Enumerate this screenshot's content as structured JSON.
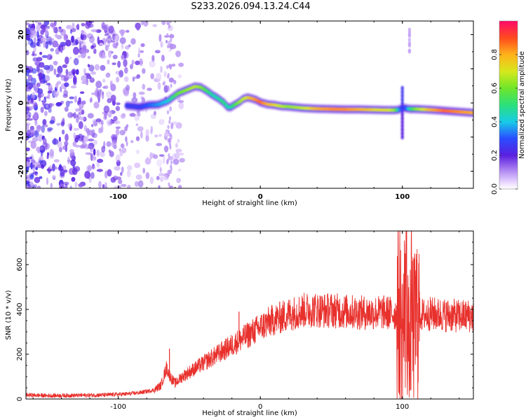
{
  "title": "S233.2026.094.13.24.C44",
  "chart_data": [
    {
      "type": "heatmap",
      "title": "S233.2026.094.13.24.C44",
      "xlabel": "Height of straight line (km)",
      "ylabel": "Frequency (Hz)",
      "xlim": [
        -165,
        150
      ],
      "ylim": [
        -25,
        24
      ],
      "x_ticks": [
        "-100",
        "0",
        "100"
      ],
      "y_ticks": [
        "20",
        "10",
        "0",
        "-10",
        "-20"
      ],
      "colorbar": {
        "label": "Normalized spectral amplitude",
        "range": [
          0.0,
          1.0
        ],
        "ticks": [
          "0.0",
          "0.2",
          "0.4",
          "0.6",
          "0.8"
        ]
      },
      "ridge": {
        "x": [
          -94,
          -85,
          -78,
          -72,
          -65,
          -58,
          -52,
          -46,
          -42,
          -38,
          -34,
          -30,
          -26,
          -23,
          -21,
          -18,
          -15,
          -12,
          -9,
          -6,
          -3,
          0,
          5,
          10,
          15,
          20,
          30,
          40,
          50,
          60,
          70,
          80,
          90,
          95,
          98,
          100,
          103,
          106,
          110,
          120,
          130,
          140,
          150
        ],
        "freq": [
          -0.8,
          -1.2,
          -0.6,
          -0.5,
          0.6,
          2.8,
          3.8,
          4.8,
          4.6,
          3.6,
          2.4,
          1.4,
          0.2,
          -1.2,
          -1.3,
          -0.5,
          0.2,
          1.2,
          1.6,
          1.3,
          0.9,
          0.2,
          -0.4,
          -0.6,
          -1.0,
          -1.1,
          -1.5,
          -1.7,
          -1.8,
          -1.9,
          -1.9,
          -2.0,
          -2.1,
          -2.1,
          -1.9,
          -1.4,
          -1.6,
          -1.8,
          -1.8,
          -2.0,
          -2.3,
          -2.6,
          -2.9
        ],
        "amplitude": [
          0.3,
          0.3,
          0.35,
          0.4,
          0.45,
          0.65,
          0.7,
          0.75,
          0.7,
          0.6,
          0.5,
          0.5,
          0.55,
          0.5,
          0.5,
          0.6,
          0.7,
          0.75,
          0.8,
          0.85,
          0.9,
          0.95,
          0.85,
          0.8,
          0.75,
          0.7,
          0.75,
          0.85,
          0.9,
          0.9,
          0.85,
          0.8,
          0.8,
          0.7,
          0.4,
          0.3,
          0.35,
          0.55,
          0.7,
          0.85,
          0.95,
          0.9,
          0.85
        ]
      }
    },
    {
      "type": "line",
      "xlabel": "Height of straight line (km)",
      "ylabel": "SNR (10 * v/v)",
      "xlim": [
        -165,
        150
      ],
      "ylim": [
        0,
        750
      ],
      "x_ticks": [
        "-100",
        "0",
        "100"
      ],
      "y_ticks": [
        "0",
        "200",
        "400",
        "600"
      ],
      "series": [
        {
          "name": "SNR",
          "color": "#e8302c",
          "x": [
            -165,
            -150,
            -130,
            -110,
            -95,
            -85,
            -75,
            -70,
            -66,
            -63,
            -60,
            -55,
            -50,
            -45,
            -40,
            -35,
            -30,
            -25,
            -20,
            -15,
            -10,
            -5,
            0,
            5,
            10,
            15,
            20,
            25,
            30,
            35,
            40,
            45,
            50,
            55,
            60,
            65,
            70,
            75,
            80,
            85,
            90,
            95,
            98,
            100,
            102,
            103,
            104,
            105,
            106,
            108,
            110,
            115,
            120,
            130,
            140,
            150
          ],
          "y": [
            18,
            15,
            16,
            18,
            22,
            28,
            40,
            60,
            140,
            95,
            70,
            100,
            120,
            140,
            160,
            180,
            200,
            220,
            240,
            260,
            280,
            300,
            320,
            340,
            355,
            365,
            378,
            388,
            395,
            398,
            398,
            395,
            397,
            393,
            390,
            388,
            385,
            385,
            385,
            387,
            385,
            380,
            400,
            300,
            420,
            560,
            320,
            140,
            420,
            300,
            380,
            375,
            380,
            375,
            370,
            372
          ],
          "spikes": [
            {
              "x": -64,
              "y": 225
            },
            {
              "x": -15,
              "y": 390
            },
            {
              "x": 102,
              "y": 650
            },
            {
              "x": 103,
              "y": 760
            },
            {
              "x": 106,
              "y": 40
            },
            {
              "x": 109,
              "y": 550
            },
            {
              "x": 112,
              "y": 480
            }
          ]
        }
      ]
    }
  ]
}
